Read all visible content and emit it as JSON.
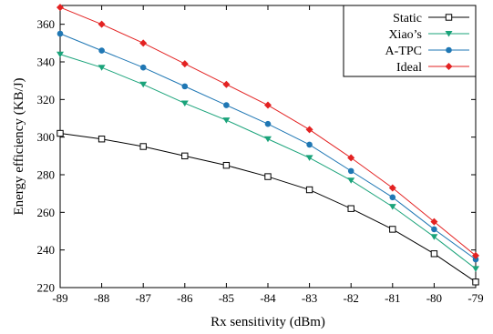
{
  "chart_data": {
    "type": "line",
    "title": "",
    "xlabel": "Rx sensitivity (dBm)",
    "ylabel": "Energy efficiency (KB/J)",
    "x": [
      -89,
      -88,
      -87,
      -86,
      -85,
      -84,
      -83,
      -82,
      -81,
      -80,
      -79
    ],
    "xlim": [
      -89,
      -79
    ],
    "ylim": [
      220,
      370
    ],
    "xticks": [
      "-89",
      "-88",
      "-87",
      "-86",
      "-85",
      "-84",
      "-83",
      "-82",
      "-81",
      "-80",
      "-79"
    ],
    "yticks": [
      "220",
      "240",
      "260",
      "280",
      "300",
      "320",
      "340",
      "360"
    ],
    "ytick_values": [
      220,
      240,
      260,
      280,
      300,
      320,
      340,
      360
    ],
    "grid": false,
    "legend_position": "top-right",
    "series": [
      {
        "name": "Static",
        "color": "#000000",
        "marker": "square-open",
        "values": [
          302,
          299,
          295,
          290,
          285,
          279,
          272,
          262,
          251,
          238,
          223
        ]
      },
      {
        "name": "Xiao’s",
        "color": "#1aa37a",
        "marker": "triangle-down",
        "values": [
          344,
          337,
          328,
          318,
          309,
          299,
          289,
          277,
          263,
          247,
          230
        ]
      },
      {
        "name": "A-TPC",
        "color": "#1f77b4",
        "marker": "circle",
        "values": [
          355,
          346,
          337,
          327,
          317,
          307,
          296,
          282,
          268,
          251,
          235
        ]
      },
      {
        "name": "Ideal",
        "color": "#e32222",
        "marker": "diamond",
        "values": [
          369,
          360,
          350,
          339,
          328,
          317,
          304,
          289,
          273,
          255,
          237
        ]
      }
    ]
  }
}
